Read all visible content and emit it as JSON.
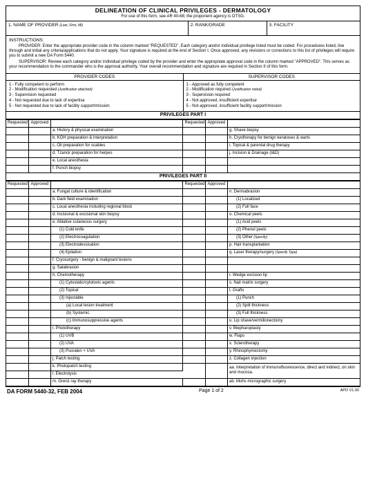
{
  "title": "DELINEATION OF CLINICAL PRIVILEGES - DERMATOLOGY",
  "subtitle": "For use of this form, see AR 40-68; the proponent agency is OTSG.",
  "header": {
    "f1": "1.  NAME OF PROVIDER",
    "f1_note": "(Last, First, MI)",
    "f2": "2.  RANK/GRADE",
    "f3": "3.  FACILITY"
  },
  "instructions": {
    "label": "INSTRUCTIONS:",
    "p1": "PROVIDER:  Enter the appropriate provider code in the column marked \"REQUESTED\".  Each category and/or individual privilege listed must be coded.  For procedures listed, line through and initial any criteria/applications that do not apply.  Your signature is required at the end of Section I.  Once approved, any revisions or corrections to this list of privileges will require you to submit a new DA Form 5440.",
    "p2": "SUPERVISOR:  Review each category and/or individual privilege coded by the provider and enter the appropriate  approval code in the column marked \"APPROVED\".  This serves as your recommendation to the commander who is the approval authority.  Your overall recommendation and signature are required in Section II of this form."
  },
  "codes": {
    "provider_header": "PROVIDER CODES",
    "supervisor_header": "SUPERVISOR CODES",
    "provider": [
      "1 - Fully competent to perform",
      "2 - Modification requested",
      "3 - Supervision requested",
      "4 - Not requested due to lack of expertise",
      "5 - Not requested due to lack of facility support/mission"
    ],
    "supervisor": [
      "1 - Approved as fully competent",
      "2 - Modification required",
      "3 - Supervision required",
      "4 - Not approved, insufficient expertise",
      "5 - Not approved, insufficient facility support/mission"
    ],
    "justif_attached": "(Justification attached)",
    "justif_noted": "(Justification noted)"
  },
  "col_labels": {
    "requested": "Requested",
    "approved": "Approved"
  },
  "part1": {
    "title": "PRIVILEGES PART I",
    "left": [
      "a.  History & physical examination",
      "b.  KOH preparation & interpretation",
      "c.  Oil preparation for scabies",
      "d.  Tzanck preparation for herpes",
      "e.  Local anesthesia",
      "f.  Punch biopsy"
    ],
    "right": [
      "g.  Shave biopsy",
      "h.  Cryotherapy for benign keratoses & warts",
      "i.   Topical & parental drug therapy",
      "j.   Incision & Drainage (I&D)",
      "",
      ""
    ]
  },
  "part2": {
    "title": "PRIVILEGES PART II",
    "left": [
      {
        "t": "a.  Fungal culture & identification",
        "i": 0
      },
      {
        "t": "b.  Dark field examination",
        "i": 0
      },
      {
        "t": "c.  Local anesthesia including regional block",
        "i": 0
      },
      {
        "t": "d.  Incisional & excisional skin biopsy",
        "i": 0
      },
      {
        "t": "e.  Ablative cutaneous surgery",
        "i": 0
      },
      {
        "t": "(1)  Cold knife",
        "i": 1
      },
      {
        "t": "(2)  Electrocoagulation",
        "i": 1
      },
      {
        "t": "(3)  Electrodessication",
        "i": 1
      },
      {
        "t": "(4)  Epilation",
        "i": 1
      },
      {
        "t": "f.  Cryosurgery - benign & malignant lesions",
        "i": 0
      },
      {
        "t": "g.  Salabrasion",
        "i": 0
      },
      {
        "t": "h.  Chemotherapy",
        "i": 0
      },
      {
        "t": "(1)  Cytostatic/cytotoxic agents",
        "i": 1
      },
      {
        "t": "(2)  Topical",
        "i": 1
      },
      {
        "t": "(3)  Injectable",
        "i": 1
      },
      {
        "t": "(a)  Local lesion treatment",
        "i": 2
      },
      {
        "t": "(b)  Systemic",
        "i": 2
      },
      {
        "t": "(c)  Immunosuppressive agents",
        "i": 2
      },
      {
        "t": "i.   Phototherapy",
        "i": 0
      },
      {
        "t": "(1)  UVB",
        "i": 1
      },
      {
        "t": "(2)  UVA",
        "i": 1
      },
      {
        "t": "(3)  Psoralen + UVA",
        "i": 1
      },
      {
        "t": "j.   Patch testing",
        "i": 0
      },
      {
        "t": "k.  Photopatch testing",
        "i": 0
      },
      {
        "t": "l.   Electrolysis",
        "i": 0
      },
      {
        "t": "m.  Grenz ray therapy",
        "i": 0
      }
    ],
    "right": [
      {
        "t": "n.  Dermabrasion",
        "i": 0
      },
      {
        "t": "(1)  Localized",
        "i": 1
      },
      {
        "t": "(2)  Full face",
        "i": 1
      },
      {
        "t": "o.  Chemical peels",
        "i": 0
      },
      {
        "t": "(1)  Acid peels",
        "i": 1
      },
      {
        "t": "(2)  Phenol peels",
        "i": 1
      },
      {
        "t": "(3)  Other",
        "i": 1,
        "note": "(Specify)"
      },
      {
        "t": "p.  Hair transplantation",
        "i": 0
      },
      {
        "t": "q.  Laser therapy/surgery",
        "i": 0,
        "note": "(Specify Type)"
      },
      {
        "t": "",
        "i": 0
      },
      {
        "t": "",
        "i": 0
      },
      {
        "t": "r.   Wedge excision lip",
        "i": 0
      },
      {
        "t": "s.  Nail matrix surgery",
        "i": 0
      },
      {
        "t": "t.   Grafts",
        "i": 0
      },
      {
        "t": "(1)  Punch",
        "i": 1
      },
      {
        "t": "(2)  Split thickness",
        "i": 1
      },
      {
        "t": "(3)  Full thickness",
        "i": 1
      },
      {
        "t": "u.  Lip shave/vermilionectomy",
        "i": 0
      },
      {
        "t": "v.  Blepharoplasty",
        "i": 0
      },
      {
        "t": "w. Flaps",
        "i": 0
      },
      {
        "t": "x.  Sclerotherapy",
        "i": 0
      },
      {
        "t": "y.  Rhinophymectomy",
        "i": 0
      },
      {
        "t": "z.  Collagen injection",
        "i": 0
      },
      {
        "t": "aa.  Interpretation of immunofluorescence, direct and indirect, on skin and mucosa.",
        "i": 0,
        "tall": true
      },
      {
        "t": "",
        "skip": true
      },
      {
        "t": "ab.  Mohs micrographic surgery",
        "i": 0
      }
    ]
  },
  "footer": {
    "left": "DA FORM 5440-32, FEB 2004",
    "center": "Page 1 of 2",
    "right": "APD V1.00"
  }
}
